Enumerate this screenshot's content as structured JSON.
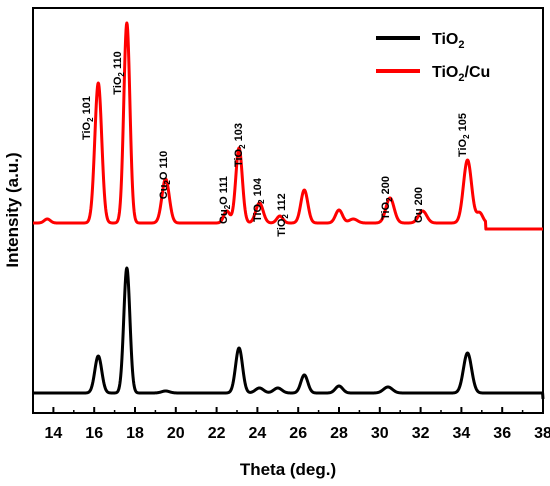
{
  "chart_data": {
    "type": "line",
    "xlabel": "Theta (deg.)",
    "ylabel": "Intensity (a.u.)",
    "xlim": [
      13,
      38
    ],
    "x_ticks": [
      14,
      16,
      18,
      20,
      22,
      24,
      26,
      28,
      30,
      32,
      34,
      36,
      38
    ],
    "y_ticks_shown": false,
    "legend_position": "top-right",
    "series": [
      {
        "name": "TiO2",
        "name_main": "TiO",
        "name_sub": "2",
        "name_rest": "",
        "color": "#000000",
        "baseline": 0,
        "peaks": [
          {
            "x": 16.2,
            "height": 37,
            "width": 0.17
          },
          {
            "x": 17.6,
            "height": 125,
            "width": 0.15
          },
          {
            "x": 19.5,
            "height": 2,
            "width": 0.2
          },
          {
            "x": 23.1,
            "height": 45,
            "width": 0.17
          },
          {
            "x": 24.1,
            "height": 5,
            "width": 0.2
          },
          {
            "x": 25.0,
            "height": 5,
            "width": 0.2
          },
          {
            "x": 26.3,
            "height": 18,
            "width": 0.17
          },
          {
            "x": 28.0,
            "height": 7,
            "width": 0.18
          },
          {
            "x": 30.4,
            "height": 6,
            "width": 0.22
          },
          {
            "x": 34.3,
            "height": 40,
            "width": 0.2
          }
        ]
      },
      {
        "name": "TiO2/Cu",
        "name_main": "TiO",
        "name_sub": "2",
        "name_rest": "/Cu",
        "color": "#ff0000",
        "baseline": 170,
        "end_x": 35.2,
        "peaks": [
          {
            "x": 13.7,
            "height": 4,
            "width": 0.15
          },
          {
            "x": 16.2,
            "height": 140,
            "width": 0.17
          },
          {
            "x": 17.6,
            "height": 200,
            "width": 0.15
          },
          {
            "x": 19.5,
            "height": 44,
            "width": 0.18
          },
          {
            "x": 22.5,
            "height": 12,
            "width": 0.15
          },
          {
            "x": 23.1,
            "height": 75,
            "width": 0.16
          },
          {
            "x": 24.1,
            "height": 20,
            "width": 0.18
          },
          {
            "x": 25.1,
            "height": 7,
            "width": 0.15
          },
          {
            "x": 26.3,
            "height": 33,
            "width": 0.17
          },
          {
            "x": 28.0,
            "height": 13,
            "width": 0.17
          },
          {
            "x": 28.7,
            "height": 4,
            "width": 0.2
          },
          {
            "x": 30.5,
            "height": 25,
            "width": 0.2
          },
          {
            "x": 32.1,
            "height": 12,
            "width": 0.2
          },
          {
            "x": 34.3,
            "height": 63,
            "width": 0.2
          },
          {
            "x": 34.9,
            "height": 10,
            "width": 0.15
          }
        ]
      }
    ],
    "annotations": [
      {
        "main": "TiO",
        "sub": "2",
        "rest": " 101",
        "x": 16.2
      },
      {
        "main": "TiO",
        "sub": "2",
        "rest": " 110",
        "x": 17.6
      },
      {
        "main": "Cu",
        "sub": "2",
        "rest": "O 110",
        "x": 19.5
      },
      {
        "main": "Cu",
        "sub": "2",
        "rest": "O 111",
        "x": 22.5
      },
      {
        "main": "TiO",
        "sub": "2",
        "rest": " 103",
        "x": 23.1
      },
      {
        "main": "TiO",
        "sub": "2",
        "rest": " 104",
        "x": 24.1
      },
      {
        "main": "TiO",
        "sub": "2",
        "rest": " 112",
        "x": 25.1
      },
      {
        "main": "TiO",
        "sub": "2",
        "rest": " 200",
        "x": 30.5
      },
      {
        "main": "Cu",
        "sub": "",
        "rest": " 200",
        "x": 32.1
      },
      {
        "main": "TiO",
        "sub": "2",
        "rest": " 105",
        "x": 34.3
      }
    ]
  }
}
